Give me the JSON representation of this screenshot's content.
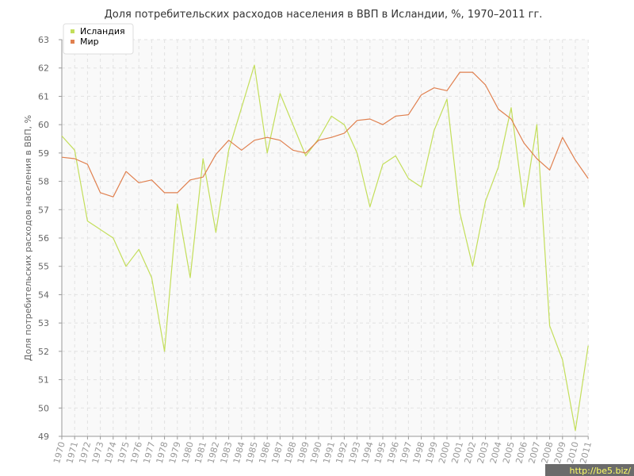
{
  "chart_data": {
    "type": "line",
    "title": "Доля потребительских расходов населения в ВВП в Исландии, %, 1970–2011 гг.",
    "xlabel": "",
    "ylabel": "Доля потребительских расходов населения в ВВП, %",
    "ylim": [
      49,
      63
    ],
    "yticks": [
      49,
      50,
      51,
      52,
      53,
      54,
      55,
      56,
      57,
      58,
      59,
      60,
      61,
      62,
      63
    ],
    "grid": true,
    "legend_position": "top-left",
    "x": [
      "1970",
      "1971",
      "1972",
      "1973",
      "1974",
      "1975",
      "1976",
      "1977",
      "1978",
      "1979",
      "1980",
      "1981",
      "1982",
      "1983",
      "1984",
      "1985",
      "1986",
      "1987",
      "1988",
      "1989",
      "1990",
      "1991",
      "1992",
      "1993",
      "1994",
      "1995",
      "1996",
      "1997",
      "1998",
      "1999",
      "2000",
      "2001",
      "2002",
      "2003",
      "2004",
      "2005",
      "2006",
      "2007",
      "2008",
      "2009",
      "2010",
      "2011"
    ],
    "series": [
      {
        "name": "Исландия",
        "color": "#c3de5a",
        "values": [
          59.6,
          59.1,
          56.6,
          56.3,
          56.0,
          55.0,
          55.6,
          54.6,
          52.0,
          57.2,
          54.6,
          58.8,
          56.2,
          59.1,
          60.6,
          62.1,
          59.0,
          61.1,
          60.0,
          58.9,
          59.5,
          60.3,
          60.0,
          59.0,
          57.1,
          58.6,
          58.9,
          58.1,
          57.8,
          59.8,
          60.9,
          56.9,
          55.0,
          57.3,
          58.5,
          60.6,
          57.1,
          60.0,
          52.9,
          51.7,
          49.2,
          52.2
        ]
      },
      {
        "name": "Мир",
        "color": "#e0804f",
        "values": [
          58.85,
          58.8,
          58.6,
          57.6,
          57.45,
          58.35,
          57.95,
          58.05,
          57.6,
          57.6,
          58.05,
          58.15,
          58.95,
          59.45,
          59.1,
          59.45,
          59.55,
          59.45,
          59.1,
          59.0,
          59.45,
          59.55,
          59.7,
          60.15,
          60.2,
          60.0,
          60.3,
          60.35,
          61.05,
          61.3,
          61.2,
          61.85,
          61.85,
          61.4,
          60.55,
          60.2,
          59.35,
          58.8,
          58.4,
          59.55,
          58.75,
          58.1
        ]
      }
    ]
  },
  "watermark": "http://be5.biz/"
}
